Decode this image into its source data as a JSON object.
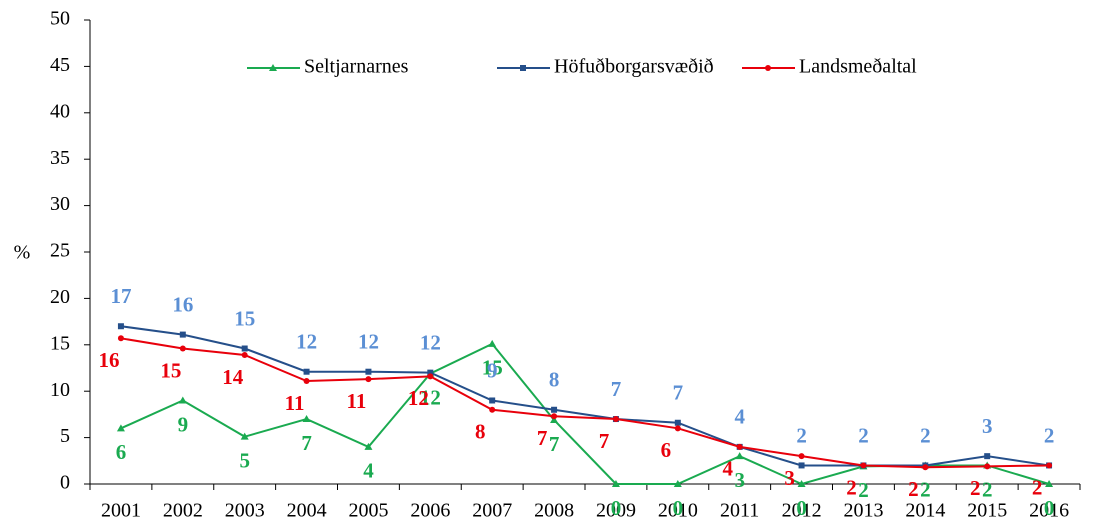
{
  "chart_data": {
    "type": "line",
    "y_label": "%",
    "categories": [
      "2001",
      "2002",
      "2003",
      "2004",
      "2005",
      "2006",
      "2007",
      "2008",
      "2009",
      "2010",
      "2011",
      "2012",
      "2013",
      "2014",
      "2015",
      "2016"
    ],
    "series": [
      {
        "name": "Seltjarnarnes",
        "color": "#1aaa50",
        "marker": "triangle",
        "values": [
          6.0,
          9.0,
          5.1,
          7.0,
          4.0,
          11.9,
          15.1,
          6.9,
          0,
          0,
          3.0,
          0,
          1.9,
          2.0,
          2.0,
          0
        ],
        "value_labels": [
          "6",
          "9",
          "5",
          "7",
          "4",
          "12",
          "15",
          "7",
          "0",
          "0",
          "3",
          "0",
          "2",
          "2",
          "2",
          "0"
        ]
      },
      {
        "name": "Höfuðborgarsvæðið",
        "color": "#254f8a",
        "marker": "square",
        "values": [
          17.0,
          16.1,
          14.6,
          12.1,
          12.1,
          12.0,
          9.0,
          8.0,
          7.0,
          6.6,
          4.0,
          2.0,
          2.0,
          2.0,
          3.0,
          2.0
        ],
        "value_labels": [
          "17",
          "16",
          "15",
          "12",
          "12",
          "12",
          "9",
          "8",
          "7",
          "7",
          "4",
          "2",
          "2",
          "2",
          "3",
          "2"
        ]
      },
      {
        "name": "Landsmeðaltal",
        "color": "#e8000b",
        "marker": "circle",
        "values": [
          15.7,
          14.6,
          13.9,
          11.1,
          11.3,
          11.6,
          8.0,
          7.3,
          7.0,
          6.0,
          4.0,
          3.0,
          2.0,
          1.8,
          1.9,
          2.0
        ],
        "value_labels": [
          "16",
          "15",
          "14",
          "11",
          "11",
          "12",
          "8",
          "7",
          "7",
          "6",
          "4",
          "3",
          "2",
          "2",
          "2",
          "2"
        ]
      }
    ],
    "ylim": [
      0,
      50
    ],
    "yticks": [
      0,
      5,
      10,
      15,
      20,
      25,
      30,
      35,
      40,
      45,
      50
    ],
    "legend": "top"
  }
}
